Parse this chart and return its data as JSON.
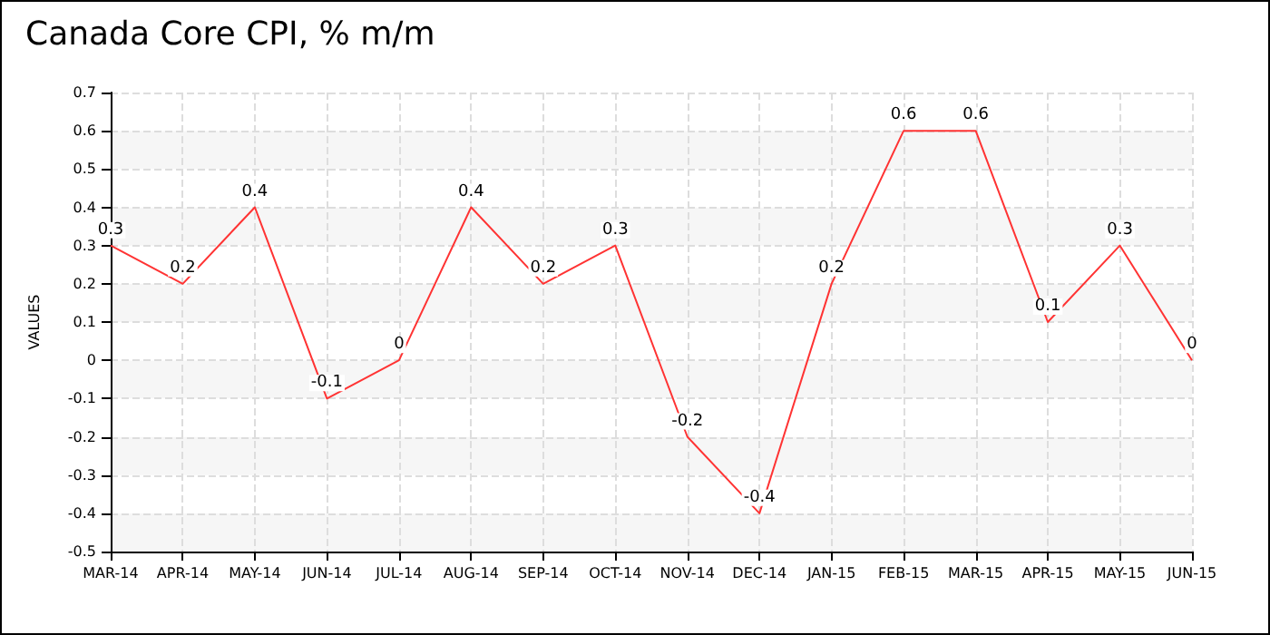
{
  "chart_data": {
    "type": "line",
    "title": "Canada Core CPI, % m/m",
    "ylabel": "VALUES",
    "categories": [
      "MAR-14",
      "APR-14",
      "MAY-14",
      "JUN-14",
      "JUL-14",
      "AUG-14",
      "SEP-14",
      "OCT-14",
      "NOV-14",
      "DEC-14",
      "JAN-15",
      "FEB-15",
      "MAR-15",
      "APR-15",
      "MAY-15",
      "JUN-15"
    ],
    "series": [
      {
        "color": "#ff3333",
        "values": [
          0.3,
          0.2,
          0.4,
          -0.1,
          0,
          0.4,
          0.2,
          0.3,
          -0.2,
          -0.4,
          0.2,
          0.6,
          0.6,
          0.1,
          0.3,
          0
        ]
      }
    ],
    "ylim": [
      -0.5,
      0.7
    ],
    "yticks": [
      -0.5,
      -0.4,
      -0.3,
      -0.2,
      -0.1,
      0,
      0.1,
      0.2,
      0.3,
      0.4,
      0.5,
      0.6,
      0.7
    ],
    "grid": true,
    "data_labels": true,
    "marker": "none",
    "line_style": "solid"
  }
}
